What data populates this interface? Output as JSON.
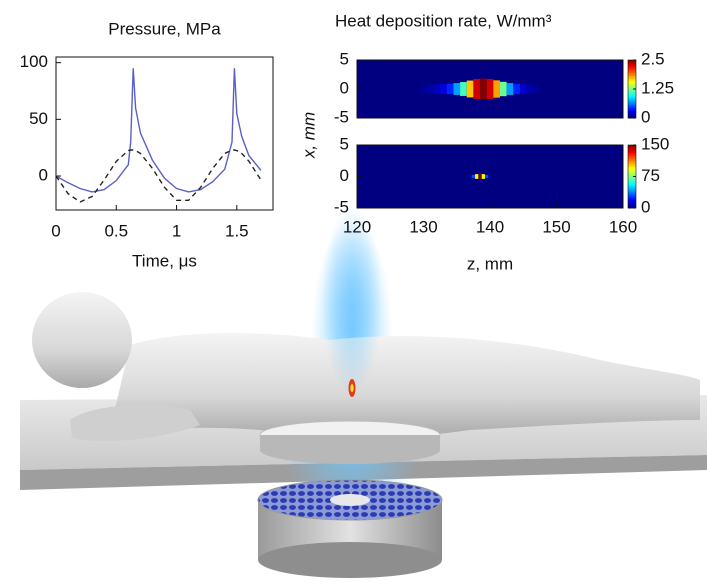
{
  "chart_data": [
    {
      "type": "line",
      "title": "Pressure, MPa",
      "xlabel": "Time, μs",
      "x": [
        0,
        0.1,
        0.2,
        0.3,
        0.4,
        0.5,
        0.6,
        0.62,
        0.64,
        0.66,
        0.7,
        0.8,
        0.9,
        1.0,
        1.1,
        1.2,
        1.3,
        1.4,
        1.46,
        1.48,
        1.5,
        1.54,
        1.6,
        1.7
      ],
      "series": [
        {
          "color": "#5a5fc8",
          "linestyle": "solid",
          "values": [
            0,
            -6,
            -11,
            -14,
            -12,
            -4,
            10,
            30,
            95,
            60,
            38,
            14,
            -2,
            -11,
            -14,
            -12,
            -5,
            6,
            30,
            95,
            55,
            35,
            18,
            5
          ]
        },
        {
          "color": "#222222",
          "linestyle": "dashed",
          "values": [
            0,
            -15.6,
            -22.9,
            -18.0,
            -3.4,
            13.0,
            22.4,
            22.9,
            22.9,
            22.4,
            19.9,
            6.8,
            -10.0,
            -21.4,
            -21.4,
            -10.0,
            6.7,
            19.9,
            22.9,
            22.9,
            22.4,
            19.9,
            13.1,
            -3.4
          ]
        }
      ],
      "xlim": [
        0,
        1.8
      ],
      "xticks": [
        0,
        0.5,
        1,
        1.5
      ],
      "ylim": [
        -30,
        105
      ],
      "yticks": [
        0,
        50,
        100
      ]
    },
    {
      "type": "heatmap",
      "title": "Heat deposition rate, W/mm³",
      "ylabel": "x, mm",
      "x": [
        130,
        131,
        132,
        133,
        134,
        135,
        136,
        137,
        138,
        139,
        140,
        141,
        142,
        143,
        144,
        145,
        146,
        147
      ],
      "values": [
        0.05,
        0.1,
        0.15,
        0.25,
        0.4,
        0.7,
        1.1,
        1.7,
        2.3,
        2.5,
        2.3,
        1.8,
        1.2,
        0.7,
        0.4,
        0.2,
        0.1,
        0.05
      ],
      "xlim": [
        120,
        160
      ],
      "ylim": [
        -5,
        5
      ],
      "yticks": [
        -5,
        0,
        5
      ],
      "zlim": [
        0,
        2.5
      ],
      "zticks": [
        0,
        1.25,
        2.5
      ]
    },
    {
      "type": "heatmap",
      "xlabel": "z, mm",
      "x": [
        137,
        137.5,
        138,
        138.5,
        139,
        139.5,
        140
      ],
      "values": [
        5,
        30,
        90,
        150,
        90,
        30,
        5
      ],
      "xlim": [
        120,
        160
      ],
      "xticks": [
        120,
        130,
        140,
        150,
        160
      ],
      "ylim": [
        -5,
        5
      ],
      "yticks": [
        -5,
        0,
        5
      ],
      "zlim": [
        0,
        150
      ],
      "zticks": [
        0,
        75,
        150
      ]
    }
  ]
}
